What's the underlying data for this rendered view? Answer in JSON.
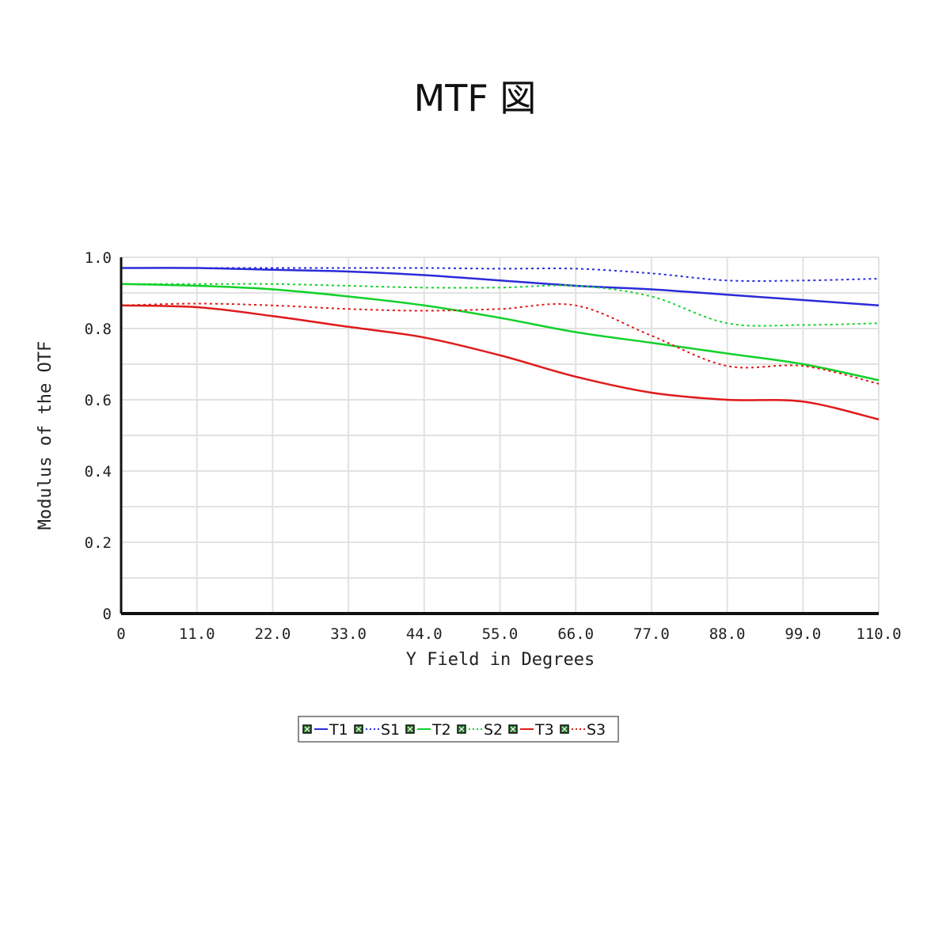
{
  "title": "MTF 図",
  "chart_data": {
    "type": "line",
    "xlabel": "Y Field in Degrees",
    "ylabel": "Modulus of the OTF",
    "xlim": [
      0,
      110
    ],
    "ylim": [
      0,
      1
    ],
    "xticks": [
      "0",
      "11.0",
      "22.0",
      "33.0",
      "44.0",
      "55.0",
      "66.0",
      "77.0",
      "88.0",
      "99.0",
      "110.0"
    ],
    "yticks": [
      "0",
      "0.2",
      "0.4",
      "0.6",
      "0.8",
      "1.0"
    ],
    "grid": true,
    "legend_position": "bottom",
    "x": [
      0,
      11,
      22,
      33,
      44,
      55,
      66,
      77,
      88,
      99,
      110
    ],
    "series": [
      {
        "name": "T1",
        "color": "#2b2bd9",
        "dash": false,
        "values": [
          0.97,
          0.97,
          0.965,
          0.96,
          0.95,
          0.935,
          0.92,
          0.91,
          0.895,
          0.88,
          0.865
        ]
      },
      {
        "name": "S1",
        "color": "#2b2bd9",
        "dash": true,
        "values": [
          0.97,
          0.97,
          0.97,
          0.97,
          0.97,
          0.968,
          0.968,
          0.955,
          0.935,
          0.935,
          0.94
        ]
      },
      {
        "name": "T2",
        "color": "#12d12a",
        "dash": false,
        "values": [
          0.925,
          0.92,
          0.91,
          0.89,
          0.865,
          0.83,
          0.79,
          0.76,
          0.73,
          0.7,
          0.655
        ]
      },
      {
        "name": "S2",
        "color": "#12d12a",
        "dash": true,
        "values": [
          0.925,
          0.925,
          0.925,
          0.92,
          0.915,
          0.915,
          0.92,
          0.89,
          0.815,
          0.81,
          0.815
        ]
      },
      {
        "name": "T3",
        "color": "#e01a1a",
        "dash": false,
        "values": [
          0.865,
          0.86,
          0.835,
          0.805,
          0.775,
          0.725,
          0.665,
          0.62,
          0.6,
          0.595,
          0.545
        ]
      },
      {
        "name": "S3",
        "color": "#e01a1a",
        "dash": true,
        "values": [
          0.865,
          0.87,
          0.865,
          0.855,
          0.85,
          0.855,
          0.865,
          0.78,
          0.695,
          0.695,
          0.645
        ]
      }
    ]
  }
}
